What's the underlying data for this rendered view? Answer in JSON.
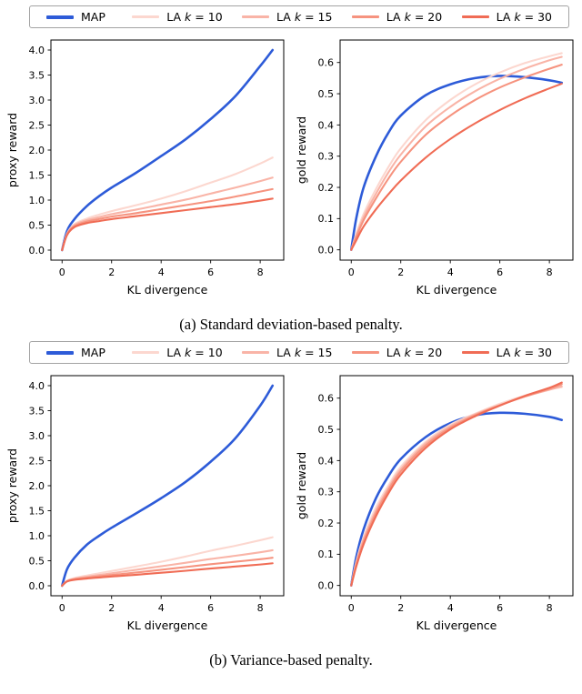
{
  "legend": {
    "entries": [
      {
        "label_pre": "MAP",
        "color": "#2d5bd8",
        "thick": true
      },
      {
        "label_pre": "LA",
        "label_var": "k",
        "label_post": "= 10",
        "color": "#fcd7cf",
        "thick": false
      },
      {
        "label_pre": "LA",
        "label_var": "k",
        "label_post": "= 15",
        "color": "#f9b4a7",
        "thick": false
      },
      {
        "label_pre": "LA",
        "label_var": "k",
        "label_post": "= 20",
        "color": "#f6937f",
        "thick": false
      },
      {
        "label_pre": "LA",
        "label_var": "k",
        "label_post": "= 30",
        "color": "#f06c55",
        "thick": false
      }
    ]
  },
  "figures": [
    {
      "caption": "(a) Standard deviation-based penalty."
    },
    {
      "caption": "(b) Variance-based penalty."
    }
  ],
  "chart_data": [
    {
      "figure": "a",
      "panel": "left",
      "type": "line",
      "grid": false,
      "legend_position": "above figure",
      "title": "",
      "xlabel": "KL divergence",
      "ylabel": "proxy reward",
      "xlim": [
        -0.45,
        8.95
      ],
      "ylim": [
        -0.2,
        4.2
      ],
      "xticks": [
        0,
        2,
        4,
        6,
        8
      ],
      "xtick_labels": [
        "0",
        "2",
        "4",
        "6",
        "8"
      ],
      "yticks": [
        0,
        0.5,
        1,
        1.5,
        2,
        2.5,
        3,
        3.5,
        4
      ],
      "ytick_labels": [
        "0.0",
        "0.5",
        "1.0",
        "1.5",
        "2.0",
        "2.5",
        "3.0",
        "3.5",
        "4.0"
      ],
      "x": [
        0,
        0.2,
        0.5,
        1,
        1.5,
        2,
        3,
        4,
        5,
        6,
        7,
        8,
        8.5
      ],
      "series": [
        {
          "name": "MAP",
          "color": "#2d5bd8",
          "lw": 2.6,
          "y": [
            0,
            0.38,
            0.62,
            0.88,
            1.08,
            1.25,
            1.55,
            1.88,
            2.22,
            2.62,
            3.08,
            3.68,
            4.0
          ]
        },
        {
          "name": "LA k = 10",
          "color": "#fcd7cf",
          "lw": 2.1,
          "y": [
            0,
            0.33,
            0.52,
            0.63,
            0.71,
            0.78,
            0.9,
            1.03,
            1.18,
            1.35,
            1.52,
            1.73,
            1.85
          ]
        },
        {
          "name": "LA k = 15",
          "color": "#f9b4a7",
          "lw": 2.1,
          "y": [
            0,
            0.32,
            0.5,
            0.6,
            0.66,
            0.72,
            0.81,
            0.91,
            1.01,
            1.13,
            1.25,
            1.38,
            1.45
          ]
        },
        {
          "name": "LA k = 20",
          "color": "#f6937f",
          "lw": 2.1,
          "y": [
            0,
            0.31,
            0.48,
            0.57,
            0.62,
            0.67,
            0.74,
            0.82,
            0.9,
            0.98,
            1.07,
            1.17,
            1.22
          ]
        },
        {
          "name": "LA k = 30",
          "color": "#f06c55",
          "lw": 2.1,
          "y": [
            0,
            0.3,
            0.46,
            0.54,
            0.58,
            0.62,
            0.68,
            0.74,
            0.8,
            0.86,
            0.92,
            0.99,
            1.03
          ]
        }
      ]
    },
    {
      "figure": "a",
      "panel": "right",
      "type": "line",
      "grid": false,
      "legend_position": "above figure",
      "title": "",
      "xlabel": "KL divergence",
      "ylabel": "gold reward",
      "xlim": [
        -0.45,
        8.95
      ],
      "ylim": [
        -0.033,
        0.672
      ],
      "xticks": [
        0,
        2,
        4,
        6,
        8
      ],
      "xtick_labels": [
        "0",
        "2",
        "4",
        "6",
        "8"
      ],
      "yticks": [
        0,
        0.1,
        0.2,
        0.3,
        0.4,
        0.5,
        0.6
      ],
      "ytick_labels": [
        "0.0",
        "0.1",
        "0.2",
        "0.3",
        "0.4",
        "0.5",
        "0.6"
      ],
      "x": [
        0,
        0.2,
        0.5,
        1,
        1.5,
        2,
        3,
        4,
        5,
        6,
        7,
        8,
        8.5
      ],
      "series": [
        {
          "name": "MAP",
          "color": "#2d5bd8",
          "lw": 2.6,
          "y": [
            0,
            0.1,
            0.2,
            0.3,
            0.375,
            0.43,
            0.495,
            0.53,
            0.55,
            0.557,
            0.553,
            0.543,
            0.535
          ]
        },
        {
          "name": "LA k = 10",
          "color": "#fcd7cf",
          "lw": 2.1,
          "y": [
            0,
            0.05,
            0.115,
            0.195,
            0.265,
            0.325,
            0.415,
            0.48,
            0.53,
            0.568,
            0.598,
            0.62,
            0.63
          ]
        },
        {
          "name": "LA k = 15",
          "color": "#f9b4a7",
          "lw": 2.1,
          "y": [
            0,
            0.045,
            0.105,
            0.18,
            0.248,
            0.305,
            0.395,
            0.458,
            0.508,
            0.548,
            0.58,
            0.607,
            0.618
          ]
        },
        {
          "name": "LA k = 20",
          "color": "#f6937f",
          "lw": 2.1,
          "y": [
            0,
            0.04,
            0.095,
            0.165,
            0.228,
            0.282,
            0.368,
            0.43,
            0.48,
            0.52,
            0.552,
            0.58,
            0.593
          ]
        },
        {
          "name": "LA k = 30",
          "color": "#f06c55",
          "lw": 2.1,
          "y": [
            0,
            0.03,
            0.075,
            0.13,
            0.178,
            0.222,
            0.295,
            0.355,
            0.405,
            0.448,
            0.485,
            0.517,
            0.532
          ]
        }
      ]
    },
    {
      "figure": "b",
      "panel": "left",
      "type": "line",
      "grid": false,
      "legend_position": "above figure",
      "title": "",
      "xlabel": "KL divergence",
      "ylabel": "proxy reward",
      "xlim": [
        -0.45,
        8.95
      ],
      "ylim": [
        -0.2,
        4.2
      ],
      "xticks": [
        0,
        2,
        4,
        6,
        8
      ],
      "xtick_labels": [
        "0",
        "2",
        "4",
        "6",
        "8"
      ],
      "yticks": [
        0,
        0.5,
        1,
        1.5,
        2,
        2.5,
        3,
        3.5,
        4
      ],
      "ytick_labels": [
        "0.0",
        "0.5",
        "1.0",
        "1.5",
        "2.0",
        "2.5",
        "3.0",
        "3.5",
        "4.0"
      ],
      "x": [
        0,
        0.2,
        0.5,
        1,
        1.5,
        2,
        3,
        4,
        5,
        6,
        7,
        8,
        8.5
      ],
      "series": [
        {
          "name": "MAP",
          "color": "#2d5bd8",
          "lw": 2.6,
          "y": [
            0,
            0.33,
            0.56,
            0.82,
            1.0,
            1.16,
            1.45,
            1.75,
            2.08,
            2.48,
            2.95,
            3.6,
            4.0
          ]
        },
        {
          "name": "LA k = 10",
          "color": "#fcd7cf",
          "lw": 2.1,
          "y": [
            0,
            0.1,
            0.155,
            0.205,
            0.25,
            0.295,
            0.385,
            0.48,
            0.585,
            0.7,
            0.8,
            0.91,
            0.97
          ]
        },
        {
          "name": "LA k = 15",
          "color": "#f9b4a7",
          "lw": 2.1,
          "y": [
            0,
            0.095,
            0.14,
            0.18,
            0.215,
            0.25,
            0.32,
            0.39,
            0.46,
            0.535,
            0.6,
            0.67,
            0.71
          ]
        },
        {
          "name": "LA k = 20",
          "color": "#f6937f",
          "lw": 2.1,
          "y": [
            0,
            0.09,
            0.13,
            0.16,
            0.19,
            0.215,
            0.265,
            0.32,
            0.375,
            0.43,
            0.48,
            0.53,
            0.56
          ]
        },
        {
          "name": "LA k = 30",
          "color": "#f06c55",
          "lw": 2.1,
          "y": [
            0,
            0.085,
            0.12,
            0.145,
            0.165,
            0.185,
            0.22,
            0.26,
            0.3,
            0.345,
            0.385,
            0.425,
            0.45
          ]
        }
      ]
    },
    {
      "figure": "b",
      "panel": "right",
      "type": "line",
      "grid": false,
      "legend_position": "above figure",
      "title": "",
      "xlabel": "KL divergence",
      "ylabel": "gold reward",
      "xlim": [
        -0.45,
        8.95
      ],
      "ylim": [
        -0.033,
        0.672
      ],
      "xticks": [
        0,
        2,
        4,
        6,
        8
      ],
      "xtick_labels": [
        "0",
        "2",
        "4",
        "6",
        "8"
      ],
      "yticks": [
        0,
        0.1,
        0.2,
        0.3,
        0.4,
        0.5,
        0.6
      ],
      "ytick_labels": [
        "0.0",
        "0.1",
        "0.2",
        "0.3",
        "0.4",
        "0.5",
        "0.6"
      ],
      "x": [
        0,
        0.2,
        0.5,
        1,
        1.5,
        2,
        3,
        4,
        5,
        6,
        7,
        8,
        8.5
      ],
      "series": [
        {
          "name": "MAP",
          "color": "#2d5bd8",
          "lw": 2.6,
          "y": [
            0,
            0.09,
            0.18,
            0.28,
            0.35,
            0.405,
            0.475,
            0.52,
            0.545,
            0.553,
            0.55,
            0.54,
            0.53
          ]
        },
        {
          "name": "LA k = 10",
          "color": "#fcd7cf",
          "lw": 2.1,
          "y": [
            0,
            0.075,
            0.155,
            0.25,
            0.32,
            0.38,
            0.46,
            0.515,
            0.55,
            0.582,
            0.608,
            0.628,
            0.635
          ]
        },
        {
          "name": "LA k = 15",
          "color": "#f9b4a7",
          "lw": 2.1,
          "y": [
            0,
            0.07,
            0.148,
            0.24,
            0.312,
            0.372,
            0.455,
            0.51,
            0.548,
            0.578,
            0.605,
            0.627,
            0.638
          ]
        },
        {
          "name": "LA k = 20",
          "color": "#f6937f",
          "lw": 2.1,
          "y": [
            0,
            0.065,
            0.14,
            0.232,
            0.305,
            0.365,
            0.448,
            0.505,
            0.545,
            0.577,
            0.605,
            0.63,
            0.645
          ]
        },
        {
          "name": "LA k = 30",
          "color": "#f06c55",
          "lw": 2.1,
          "y": [
            0,
            0.06,
            0.132,
            0.222,
            0.295,
            0.355,
            0.44,
            0.5,
            0.542,
            0.576,
            0.607,
            0.633,
            0.65
          ]
        }
      ]
    }
  ]
}
